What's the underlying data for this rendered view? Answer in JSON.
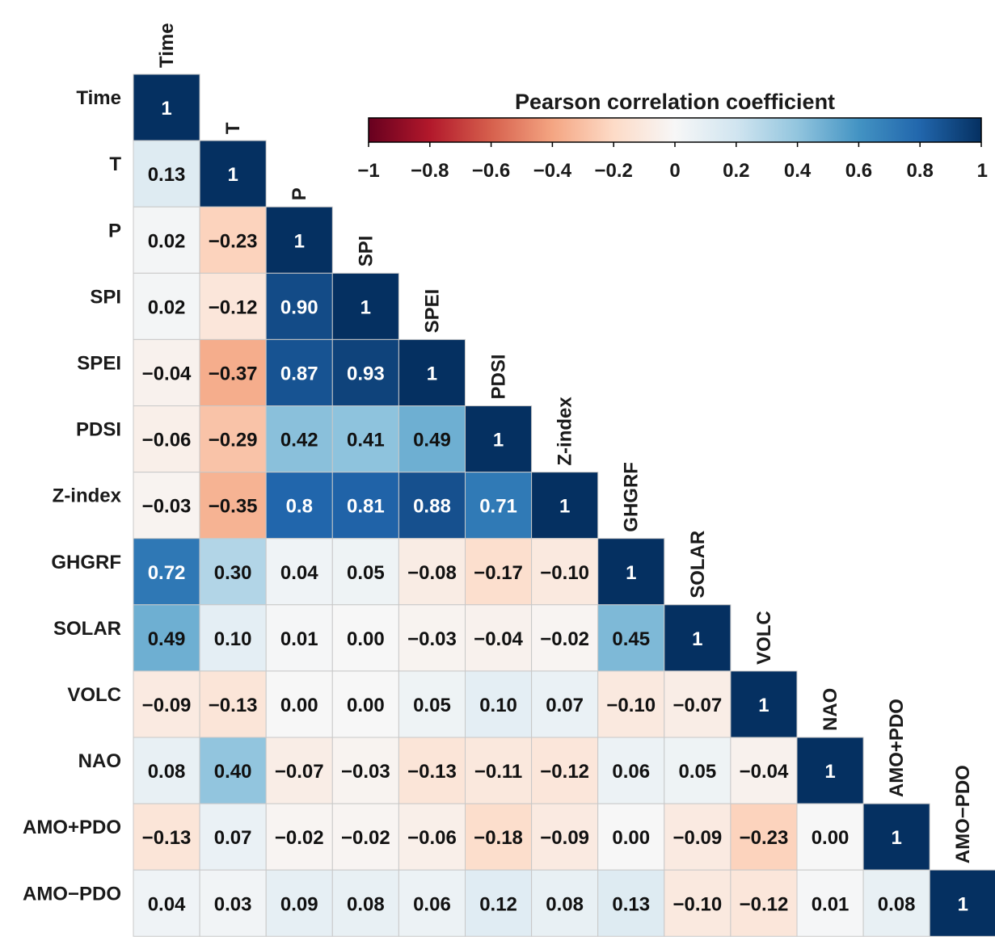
{
  "chart_data": {
    "type": "heatmap",
    "variables": [
      "Time",
      "T",
      "P",
      "SPI",
      "SPEI",
      "PDSI",
      "Z-index",
      "GHGRF",
      "SOLAR",
      "VOLC",
      "NAO",
      "AMO+PDO",
      "AMO−PDO"
    ],
    "matrix_lower": [
      [
        "1"
      ],
      [
        "0.13",
        "1"
      ],
      [
        "0.02",
        "−0.23",
        "1"
      ],
      [
        "0.02",
        "−0.12",
        "0.90",
        "1"
      ],
      [
        "−0.04",
        "−0.37",
        "0.87",
        "0.93",
        "1"
      ],
      [
        "−0.06",
        "−0.29",
        "0.42",
        "0.41",
        "0.49",
        "1"
      ],
      [
        "−0.03",
        "−0.35",
        "0.8",
        "0.81",
        "0.88",
        "0.71",
        "1"
      ],
      [
        "0.72",
        "0.30",
        "0.04",
        "0.05",
        "−0.08",
        "−0.17",
        "−0.10",
        "1"
      ],
      [
        "0.49",
        "0.10",
        "0.01",
        "0.00",
        "−0.03",
        "−0.04",
        "−0.02",
        "0.45",
        "1"
      ],
      [
        "−0.09",
        "−0.13",
        "0.00",
        "0.00",
        "0.05",
        "0.10",
        "0.07",
        "−0.10",
        "−0.07",
        "1"
      ],
      [
        "0.08",
        "0.40",
        "−0.07",
        "−0.03",
        "−0.13",
        "−0.11",
        "−0.12",
        "0.06",
        "0.05",
        "−0.04",
        "1"
      ],
      [
        "−0.13",
        "0.07",
        "−0.02",
        "−0.02",
        "−0.06",
        "−0.18",
        "−0.09",
        "0.00",
        "−0.09",
        "−0.23",
        "0.00",
        "1"
      ],
      [
        "0.04",
        "0.03",
        "0.09",
        "0.08",
        "0.06",
        "0.12",
        "0.08",
        "0.13",
        "−0.10",
        "−0.12",
        "0.01",
        "0.08",
        "1"
      ]
    ],
    "colorbar": {
      "title": "Pearson correlation coefficient",
      "range": [
        -1,
        1
      ],
      "ticks": [
        "−1",
        "−0.8",
        "−0.6",
        "−0.4",
        "−0.2",
        "0",
        "0.2",
        "0.4",
        "0.6",
        "0.8",
        "1"
      ],
      "colormap": "RdBu",
      "stops": [
        "#67001f",
        "#b2182b",
        "#d6604d",
        "#f4a582",
        "#fddbc7",
        "#f7f7f7",
        "#d1e5f0",
        "#92c5de",
        "#4393c3",
        "#2166ac",
        "#053061"
      ]
    }
  }
}
